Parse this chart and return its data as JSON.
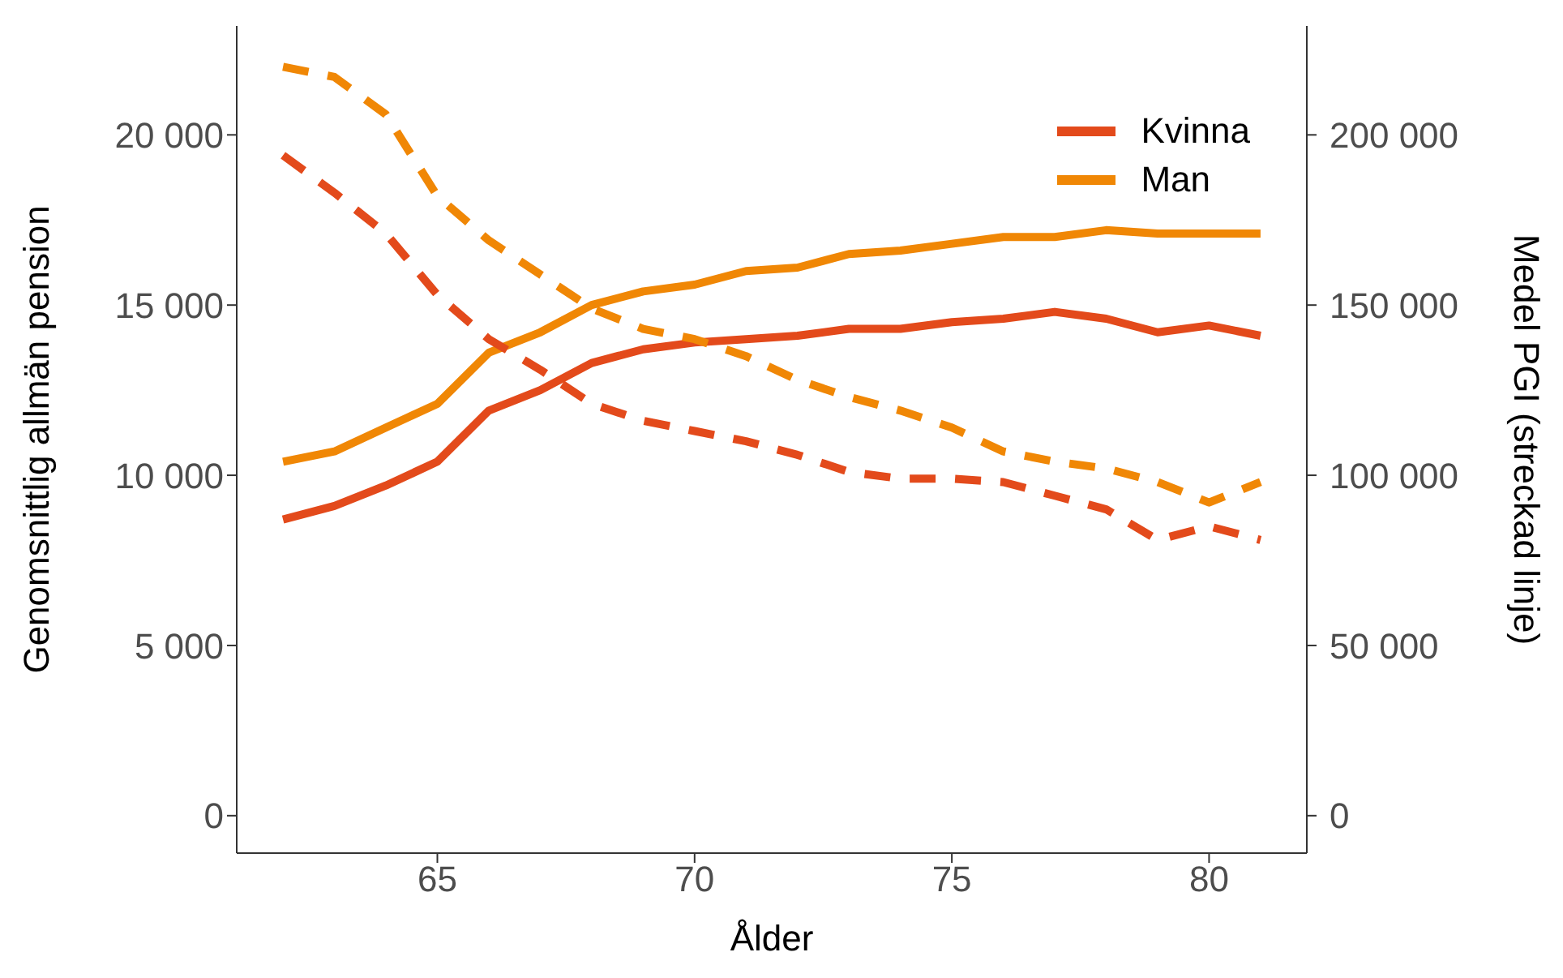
{
  "chart_data": {
    "type": "line",
    "xlabel": "Ålder",
    "ylabel": "Genomsnittlig allmän pension",
    "y2label": "Medel PGI (streckad linje)",
    "x": [
      62,
      63,
      64,
      65,
      66,
      67,
      68,
      69,
      70,
      71,
      72,
      73,
      74,
      75,
      76,
      77,
      78,
      79,
      80,
      81
    ],
    "xlim": [
      61.1,
      81.9
    ],
    "xticks": [
      65,
      70,
      75,
      80
    ],
    "ylim": [
      -1100,
      23200
    ],
    "yticks": [
      {
        "value": 0,
        "label": "0"
      },
      {
        "value": 5000,
        "label": "5 000"
      },
      {
        "value": 10000,
        "label": "10 000"
      },
      {
        "value": 15000,
        "label": "15 000"
      },
      {
        "value": 20000,
        "label": "20 000"
      }
    ],
    "y2lim": [
      -11000,
      232000
    ],
    "y2ticks": [
      {
        "value": 0,
        "label": "0"
      },
      {
        "value": 50000,
        "label": "50 000"
      },
      {
        "value": 100000,
        "label": "100 000"
      },
      {
        "value": 150000,
        "label": "150 000"
      },
      {
        "value": 200000,
        "label": "200 000"
      }
    ],
    "legend": "top right",
    "marker": "none",
    "series": [
      {
        "name": "Kvinna",
        "color": "#e34a1b",
        "line_style": "solid",
        "values": [
          8700,
          9100,
          9700,
          10400,
          11900,
          12500,
          13300,
          13700,
          13900,
          14000,
          14100,
          14300,
          14300,
          14500,
          14600,
          14800,
          14600,
          14200,
          14400,
          14100
        ]
      },
      {
        "name": "Man",
        "color": "#f08705",
        "line_style": "solid",
        "values": [
          10400,
          10700,
          11400,
          12100,
          13600,
          14200,
          15000,
          15400,
          15600,
          16000,
          16100,
          16500,
          16600,
          16800,
          17000,
          17000,
          17200,
          17100,
          17100,
          17100
        ]
      },
      {
        "color": "#e34a1b",
        "line_style": "dashed",
        "axis": "y2",
        "values": [
          194000,
          183000,
          171000,
          153000,
          140000,
          131000,
          121000,
          116000,
          113000,
          110000,
          106000,
          101000,
          99000,
          99000,
          98000,
          94000,
          90000,
          81000,
          85000,
          81000
        ]
      },
      {
        "color": "#f08705",
        "line_style": "dashed",
        "axis": "y2",
        "values": [
          220000,
          217000,
          206000,
          182000,
          169000,
          159000,
          149000,
          143000,
          140000,
          135000,
          128000,
          123000,
          119000,
          114000,
          107000,
          104000,
          102000,
          98000,
          92000,
          98000
        ]
      }
    ]
  }
}
